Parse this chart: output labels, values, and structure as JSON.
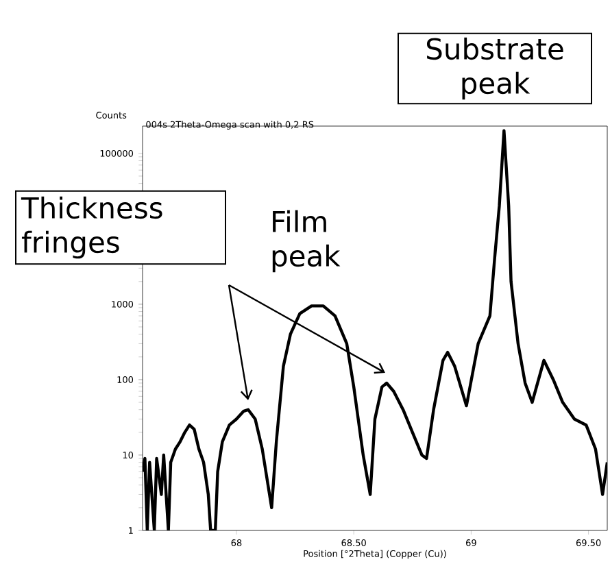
{
  "chart_data": {
    "type": "line",
    "title": "004s 2Theta-Omega scan with 0,2 RS",
    "xlabel": "Position [°2Theta] (Copper (Cu))",
    "ylabel": "Counts",
    "annotations": [
      "Substrate peak",
      "Thickness fringes",
      "Film peak"
    ],
    "x": [
      67.6,
      67.61,
      67.62,
      67.63,
      67.65,
      67.66,
      67.68,
      67.69,
      67.71,
      67.72,
      67.74,
      67.76,
      67.78,
      67.8,
      67.82,
      67.84,
      67.86,
      67.88,
      67.89,
      67.91,
      67.92,
      67.94,
      67.97,
      68.0,
      68.03,
      68.05,
      68.08,
      68.11,
      68.15,
      68.17,
      68.2,
      68.23,
      68.27,
      68.32,
      68.37,
      68.42,
      68.47,
      68.5,
      68.54,
      68.57,
      68.59,
      68.62,
      68.64,
      68.67,
      68.71,
      68.75,
      68.79,
      68.81,
      68.84,
      68.88,
      68.9,
      68.93,
      68.98,
      69.03,
      69.08,
      69.1,
      69.12,
      69.14,
      69.16,
      69.17,
      69.2,
      69.23,
      69.26,
      69.31,
      69.35,
      69.39,
      69.44,
      69.49,
      69.53,
      69.56,
      69.58
    ],
    "series": [
      {
        "color": "#000000",
        "values": [
          6,
          9,
          1,
          8,
          1,
          9,
          3,
          10,
          1,
          8,
          12,
          15,
          20,
          25,
          22,
          12,
          8,
          3,
          1,
          1,
          6,
          15,
          25,
          30,
          38,
          40,
          30,
          12,
          2,
          15,
          150,
          400,
          750,
          950,
          950,
          700,
          300,
          80,
          10,
          3,
          30,
          80,
          90,
          70,
          40,
          20,
          10,
          9,
          40,
          180,
          230,
          150,
          45,
          300,
          700,
          4000,
          20000,
          200000,
          20000,
          2000,
          300,
          90,
          50,
          180,
          100,
          50,
          30,
          25,
          12,
          3,
          8
        ]
      }
    ],
    "log": "y",
    "xlim": [
      67.6,
      69.58
    ],
    "ylim": [
      1,
      230000
    ],
    "xticks": [
      68,
      {
        "value": 68.5,
        "label": "68.50"
      },
      69,
      {
        "value": 69.5,
        "label": "69.50"
      }
    ],
    "yticks": [
      1,
      10,
      100,
      1000,
      {
        "value": 10000,
        "label": null
      },
      100000
    ]
  }
}
